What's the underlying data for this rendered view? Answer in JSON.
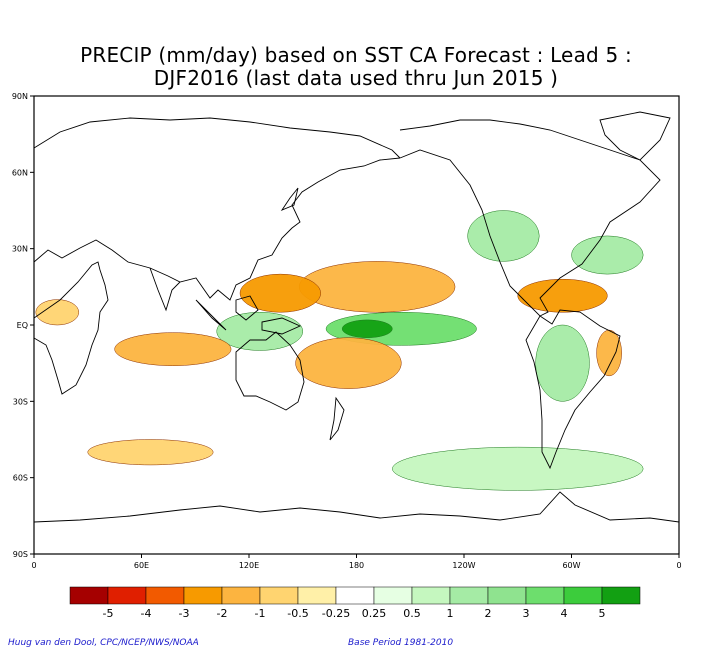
{
  "header": {
    "title_line1": "PRECIP (mm/day) based on SST CA Forecast : Lead 5 :",
    "title_line2": "DJF2016 (last data used thru Jun 2015 )"
  },
  "footer": {
    "credit_left": "Huug van den Dool, CPC/NCEP/NWS/NOAA",
    "credit_right": "Base Period 1981-2010"
  },
  "chart_data": {
    "type": "heatmap",
    "title": "PRECIP (mm/day) based on SST CA Forecast : Lead 5 : DJF2016 (last data used thru Jun 2015 )",
    "variable": "precipitation anomaly (mm/day)",
    "x_axis": {
      "ticks": [
        "0",
        "60E",
        "120E",
        "180",
        "120W",
        "60W",
        "0"
      ],
      "tick_lon": [
        0,
        60,
        120,
        180,
        240,
        300,
        360
      ],
      "range": [
        0,
        360
      ]
    },
    "y_axis": {
      "ticks": [
        "90N",
        "60N",
        "30N",
        "EQ",
        "30S",
        "60S",
        "90S"
      ],
      "tick_lat": [
        90,
        60,
        30,
        0,
        -30,
        -60,
        -90
      ],
      "range": [
        -90,
        90
      ]
    },
    "colorbar": {
      "labels": [
        "-5",
        "-4",
        "-3",
        "-2",
        "-1",
        "-0.5",
        "-0.25",
        "0.25",
        "0.5",
        "1",
        "2",
        "3",
        "4",
        "5"
      ],
      "colors": [
        "#a50000",
        "#e01f00",
        "#f25a00",
        "#f79a00",
        "#fcb440",
        "#ffd470",
        "#fff0a8",
        "#ffffff",
        "#e6ffe3",
        "#c5f7bf",
        "#a5eba5",
        "#8fe38f",
        "#6dde6d",
        "#3ccc3c",
        "#12a012"
      ]
    },
    "regions": [
      {
        "name": "central-east-pacific-wet",
        "lon": [
          163,
          247
        ],
        "lat": [
          -8,
          5
        ],
        "value": 3.5
      },
      {
        "name": "central-pacific-core",
        "lon": [
          172,
          200
        ],
        "lat": [
          -5,
          2
        ],
        "value": 5
      },
      {
        "name": "maritime-continent-wet",
        "lon": [
          102,
          150
        ],
        "lat": [
          -10,
          5
        ],
        "value": 1.5
      },
      {
        "name": "north-pacific-dry",
        "lon": [
          148,
          235
        ],
        "lat": [
          5,
          25
        ],
        "value": -2
      },
      {
        "name": "western-pacific-dry",
        "lon": [
          115,
          160
        ],
        "lat": [
          5,
          20
        ],
        "value": -2.5
      },
      {
        "name": "south-pacific-dry",
        "lon": [
          146,
          205
        ],
        "lat": [
          -25,
          -5
        ],
        "value": -1.5
      },
      {
        "name": "indian-ocean-dry",
        "lon": [
          45,
          110
        ],
        "lat": [
          -16,
          -3
        ],
        "value": -1.5
      },
      {
        "name": "west-africa-dry",
        "lon": [
          1,
          25
        ],
        "lat": [
          0,
          10
        ],
        "value": -1
      },
      {
        "name": "north-atlantic-wet",
        "lon": [
          300,
          340
        ],
        "lat": [
          20,
          35
        ],
        "value": 1.5
      },
      {
        "name": "us-gulf-wet",
        "lon": [
          242,
          282
        ],
        "lat": [
          25,
          45
        ],
        "value": 1
      },
      {
        "name": "central-america-dry",
        "lon": [
          270,
          320
        ],
        "lat": [
          5,
          18
        ],
        "value": -2.5
      },
      {
        "name": "brazil-dry",
        "lon": [
          314,
          328
        ],
        "lat": [
          -20,
          -2
        ],
        "value": -1.5
      },
      {
        "name": "south-america-wet",
        "lon": [
          280,
          310
        ],
        "lat": [
          -30,
          0
        ],
        "value": 1
      },
      {
        "name": "southern-ocean-wet",
        "lon": [
          200,
          340
        ],
        "lat": [
          -65,
          -48
        ],
        "value": 0.5
      },
      {
        "name": "southern-ocean-dry",
        "lon": [
          30,
          100
        ],
        "lat": [
          -55,
          -45
        ],
        "value": -1
      }
    ]
  }
}
